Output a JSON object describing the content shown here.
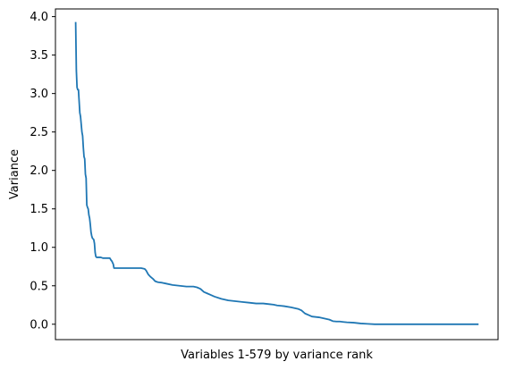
{
  "chart_data": {
    "type": "line",
    "title": "",
    "xlabel": "Variables 1-579 by variance rank",
    "ylabel": "Variance",
    "xlim": [
      -28,
      607
    ],
    "ylim": [
      -0.2,
      4.1
    ],
    "x_ticks_shown": false,
    "grid": false,
    "yticks": [
      0.0,
      0.5,
      1.0,
      1.5,
      2.0,
      2.5,
      3.0,
      3.5,
      4.0
    ],
    "ytick_labels": [
      "0.0",
      "0.5",
      "1.0",
      "1.5",
      "2.0",
      "2.5",
      "3.0",
      "3.5",
      "4.0"
    ],
    "line_color": "#1f77b4",
    "series": [
      {
        "x": [
          1,
          2,
          3,
          4,
          5,
          7,
          8,
          9,
          10,
          11,
          12,
          13,
          14,
          15,
          16,
          17,
          18,
          19,
          20,
          21,
          22,
          23,
          24,
          25,
          27,
          28,
          29,
          30,
          31,
          33,
          35,
          37,
          40,
          45,
          50,
          52,
          53,
          55,
          56,
          58,
          60,
          70,
          80,
          90,
          95,
          100,
          102,
          105,
          108,
          112,
          115,
          118,
          120,
          125,
          130,
          140,
          150,
          160,
          170,
          175,
          180,
          185,
          190,
          195,
          200,
          210,
          220,
          230,
          240,
          250,
          260,
          270,
          280,
          285,
          290,
          295,
          300,
          310,
          320,
          325,
          330,
          335,
          340,
          350,
          355,
          360,
          365,
          370,
          375,
          380,
          385,
          390,
          400,
          410,
          420,
          430,
          440,
          450,
          460,
          470,
          480,
          490,
          500,
          510,
          520,
          530,
          540,
          550,
          560,
          570,
          579
        ],
        "y": [
          3.93,
          3.3,
          3.08,
          3.05,
          3.05,
          2.75,
          2.7,
          2.6,
          2.5,
          2.45,
          2.3,
          2.18,
          2.15,
          1.95,
          1.9,
          1.55,
          1.52,
          1.5,
          1.42,
          1.38,
          1.3,
          1.2,
          1.15,
          1.12,
          1.1,
          1.05,
          0.93,
          0.88,
          0.87,
          0.87,
          0.87,
          0.87,
          0.86,
          0.86,
          0.86,
          0.83,
          0.82,
          0.78,
          0.73,
          0.73,
          0.73,
          0.73,
          0.73,
          0.73,
          0.73,
          0.72,
          0.7,
          0.65,
          0.62,
          0.59,
          0.56,
          0.55,
          0.545,
          0.54,
          0.53,
          0.51,
          0.5,
          0.49,
          0.49,
          0.48,
          0.46,
          0.42,
          0.4,
          0.38,
          0.36,
          0.33,
          0.31,
          0.3,
          0.29,
          0.28,
          0.27,
          0.27,
          0.26,
          0.255,
          0.245,
          0.24,
          0.235,
          0.22,
          0.2,
          0.18,
          0.14,
          0.12,
          0.1,
          0.09,
          0.08,
          0.07,
          0.06,
          0.04,
          0.035,
          0.035,
          0.03,
          0.025,
          0.02,
          0.01,
          0.005,
          0.0,
          0.0,
          0.0,
          0.0,
          0.0,
          0.0,
          0.0,
          0.0,
          0.0,
          0.0,
          0.0,
          0.0,
          0.0,
          0.0,
          0.0,
          0.0
        ]
      }
    ]
  }
}
